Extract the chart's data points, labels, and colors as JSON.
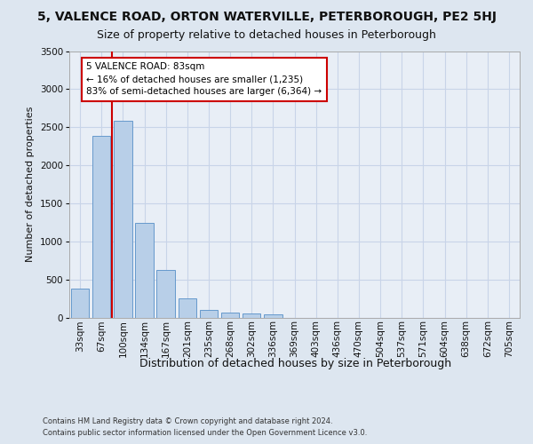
{
  "title_line1": "5, VALENCE ROAD, ORTON WATERVILLE, PETERBOROUGH, PE2 5HJ",
  "title_line2": "Size of property relative to detached houses in Peterborough",
  "xlabel": "Distribution of detached houses by size in Peterborough",
  "ylabel": "Number of detached properties",
  "categories": [
    "33sqm",
    "67sqm",
    "100sqm",
    "134sqm",
    "167sqm",
    "201sqm",
    "235sqm",
    "268sqm",
    "302sqm",
    "336sqm",
    "369sqm",
    "403sqm",
    "436sqm",
    "470sqm",
    "504sqm",
    "537sqm",
    "571sqm",
    "604sqm",
    "638sqm",
    "672sqm",
    "705sqm"
  ],
  "values": [
    380,
    2390,
    2590,
    1240,
    630,
    250,
    95,
    60,
    55,
    40,
    0,
    0,
    0,
    0,
    0,
    0,
    0,
    0,
    0,
    0,
    0
  ],
  "bar_color": "#b8cfe8",
  "bar_edge_color": "#6699cc",
  "vline_color": "#cc0000",
  "vline_x": 1.5,
  "annotation_text": "5 VALENCE ROAD: 83sqm\n← 16% of detached houses are smaller (1,235)\n83% of semi-detached houses are larger (6,364) →",
  "annotation_box_color": "#cc0000",
  "ylim": [
    0,
    3500
  ],
  "yticks": [
    0,
    500,
    1000,
    1500,
    2000,
    2500,
    3000,
    3500
  ],
  "grid_color": "#c8d4e8",
  "fig_bg_color": "#dde6f0",
  "plot_bg_color": "#e8eef6",
  "footer": "Contains HM Land Registry data © Crown copyright and database right 2024.\nContains public sector information licensed under the Open Government Licence v3.0.",
  "title_fontsize": 10,
  "subtitle_fontsize": 9,
  "xlabel_fontsize": 9,
  "ylabel_fontsize": 8,
  "tick_fontsize": 7.5,
  "annot_fontsize": 7.5,
  "footer_fontsize": 6
}
